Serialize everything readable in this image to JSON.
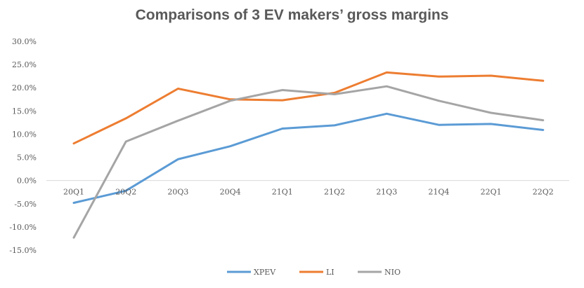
{
  "chart_data": {
    "type": "line",
    "title": "Comparisons of 3 EV makers’ gross margins",
    "xlabel": "",
    "ylabel": "",
    "categories": [
      "20Q1",
      "20Q2",
      "20Q3",
      "20Q4",
      "21Q1",
      "21Q2",
      "21Q3",
      "21Q4",
      "22Q1",
      "22Q2"
    ],
    "ylim": [
      -15,
      30
    ],
    "yticks": [
      30,
      25,
      20,
      15,
      10,
      5,
      0,
      -5,
      -10,
      -15
    ],
    "ytick_labels": [
      "30.0%",
      "25.0%",
      "20.0%",
      "15.0%",
      "10.0%",
      "5.0%",
      "0.0%",
      "-5.0%",
      "-10.0%",
      "-15.0%"
    ],
    "grid": false,
    "legend_position": "bottom",
    "series": [
      {
        "name": "XPEV",
        "color": "#5B9BD5",
        "values": [
          -4.8,
          -2.2,
          4.6,
          7.4,
          11.2,
          11.9,
          14.4,
          12.0,
          12.2,
          10.9
        ]
      },
      {
        "name": "LI",
        "color": "#ED7D31",
        "values": [
          8.0,
          13.4,
          19.8,
          17.5,
          17.3,
          18.9,
          23.3,
          22.4,
          22.6,
          21.5
        ]
      },
      {
        "name": "NIO",
        "color": "#A5A5A5",
        "values": [
          -12.3,
          8.4,
          12.9,
          17.2,
          19.5,
          18.6,
          20.3,
          17.2,
          14.6,
          13.0
        ]
      }
    ]
  }
}
